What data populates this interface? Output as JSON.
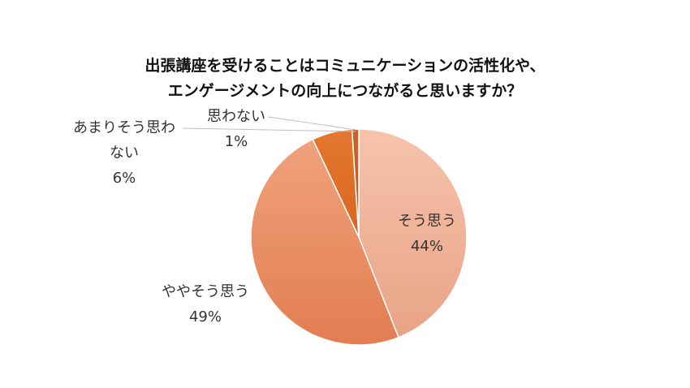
{
  "chart_data": {
    "type": "pie",
    "title": [
      "出張講座を受けることはコミュニケーションの活性化や、",
      "エンゲージメントの向上につながると思いますか？"
    ],
    "slices": [
      {
        "name": "そう思う",
        "value": 44,
        "label_lines": [
          "そう思う"
        ],
        "percent_label": "44%",
        "color": "#F2A98A"
      },
      {
        "name": "ややそう思う",
        "value": 49,
        "label_lines": [
          "ややそう思う"
        ],
        "percent_label": "49%",
        "color": "#EE8B5F"
      },
      {
        "name": "あまりそう思わない",
        "value": 6,
        "label_lines": [
          "あまりそう思わ",
          "ない"
        ],
        "percent_label": "6%",
        "color": "#E5762E"
      },
      {
        "name": "思わない",
        "value": 1,
        "label_lines": [
          "思わない"
        ],
        "percent_label": "1%",
        "color": "#C7642B"
      }
    ],
    "start_angle_deg": 0,
    "direction": "clockwise",
    "legend": "none"
  }
}
